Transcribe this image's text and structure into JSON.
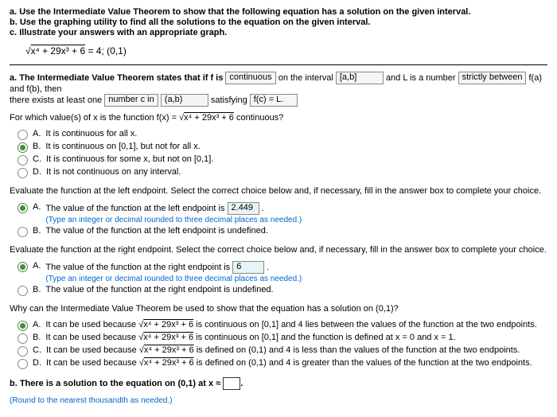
{
  "header": {
    "a": "a. Use the Intermediate Value Theorem to show that the following equation has a solution on the given interval.",
    "b": "b. Use the graphing utility to find all the solutions to the equation on the given interval.",
    "c": "c. Illustrate your answers with an appropriate graph."
  },
  "equation": {
    "expr": "x⁴ + 29x³ + 6",
    "rhs": " = 4; (0,1)"
  },
  "ivt_statement": {
    "prefix": "a. The Intermediate Value Theorem states that if f is ",
    "blank1": "continuous",
    "mid1": " on the interval ",
    "blank2": "[a,b]",
    "mid2": " and L is a number ",
    "blank3": "strictly between",
    "mid3": " f(a) and f(b), then",
    "line2_prefix": "there exists at least one ",
    "blank4": "number c in",
    "mid4": " ",
    "blank5": "(a,b)",
    "mid5": " satisfying ",
    "blank6": "f(c) = L."
  },
  "continuity_question": "For which value(s) of x is the function f(x) = √(x⁴ + 29x³ + 6) continuous?",
  "continuity_choices": {
    "A": "It is continuous for all x.",
    "B": "It is continuous on [0,1], but not for all x.",
    "C": "It is continuous for some x, but not on [0,1].",
    "D": "It is not continuous on any interval.",
    "selected": "B"
  },
  "left_endpoint": {
    "prompt": "Evaluate the function at the left endpoint. Select the correct choice below and, if necessary, fill in the answer box to complete your choice.",
    "A_prefix": "The value of the function at the left endpoint is ",
    "A_value": "2.449",
    "A_suffix": " .",
    "A_hint": "(Type an integer or decimal rounded to three decimal places as needed.)",
    "B": "The value of the function at the left endpoint is undefined.",
    "selected": "A"
  },
  "right_endpoint": {
    "prompt": "Evaluate the function at the right endpoint. Select the correct choice below and, if necessary, fill in the answer box to complete your choice.",
    "A_prefix": "The value of the function at the right endpoint is ",
    "A_value": "6",
    "A_suffix": " .",
    "A_hint": "(Type an integer or decimal rounded to three decimal places as needed.)",
    "B": "The value of the function at the right endpoint is undefined.",
    "selected": "A"
  },
  "why_question": "Why can the Intermediate Value Theorem be used to show that the equation has a solution on (0,1)?",
  "why_choices": {
    "A": "It can be used because √(x⁴ + 29x³ + 6) is continuous on [0,1] and 4 lies between the values of the function at the two endpoints.",
    "B": "It can be used because √(x⁴ + 29x³ + 6) is continuous on [0,1] and the function is defined at x = 0 and x = 1.",
    "C": "It can be used because √(x⁴ + 29x³ + 6) is defined on (0,1) and 4 is less than the values of the function at the two endpoints.",
    "D": "It can be used because √(x⁴ + 29x³ + 6) is defined on (0,1) and 4 is greater than the values of the function at the two endpoints.",
    "selected": "A"
  },
  "part_b": {
    "text": "b. There is a solution to the equation on (0,1) at x ≈ ",
    "hint": "(Round to the nearest thousandth as needed.)"
  }
}
